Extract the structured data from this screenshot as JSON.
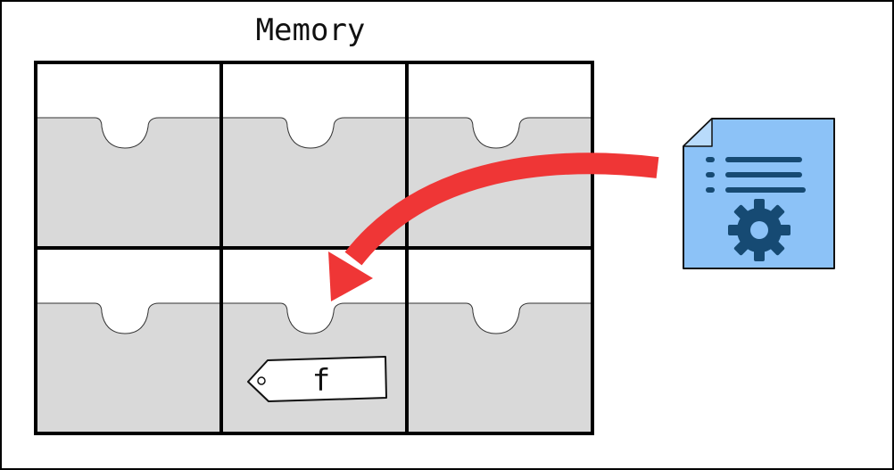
{
  "diagram": {
    "title": "Memory",
    "tag_label": "f",
    "grid": {
      "rows": 2,
      "columns": 3
    },
    "colors": {
      "drawer_fill": "#d9d9d9",
      "border": "#000000",
      "arrow": "#ef3636",
      "doc_fill": "#8cc2f7",
      "doc_detail": "#164a73"
    },
    "icons": [
      "document-gear-icon",
      "curved-arrow-icon",
      "tag-icon"
    ]
  }
}
